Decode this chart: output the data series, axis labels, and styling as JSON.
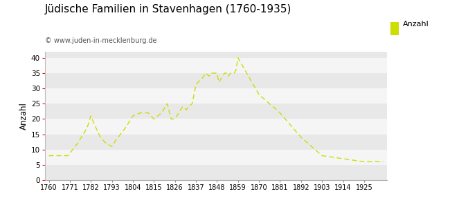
{
  "title": "Jüdische Familien in Stavenhagen (1760-1935)",
  "subtitle": "© www.juden-in-mecklenburg.de",
  "ylabel": "Anzahl",
  "legend_label": "Anzahl",
  "line_color": "#ccdd00",
  "background_color": "#ffffff",
  "plot_bg_color": "#e8e8e8",
  "strip_color": "#f5f5f5",
  "ylim": [
    0,
    42
  ],
  "yticks": [
    0,
    5,
    10,
    15,
    20,
    25,
    30,
    35,
    40
  ],
  "xticks": [
    1760,
    1771,
    1782,
    1793,
    1804,
    1815,
    1826,
    1837,
    1848,
    1859,
    1870,
    1881,
    1892,
    1903,
    1914,
    1925
  ],
  "years": [
    1760,
    1762,
    1765,
    1770,
    1775,
    1780,
    1782,
    1784,
    1787,
    1790,
    1793,
    1795,
    1800,
    1804,
    1808,
    1812,
    1815,
    1817,
    1819,
    1821,
    1822,
    1824,
    1826,
    1828,
    1830,
    1832,
    1833,
    1835,
    1837,
    1838,
    1840,
    1842,
    1844,
    1845,
    1848,
    1849,
    1850,
    1851,
    1852,
    1853,
    1854,
    1855,
    1856,
    1857,
    1858,
    1859,
    1870,
    1881,
    1892,
    1903,
    1914,
    1925,
    1935
  ],
  "values": [
    8,
    8,
    8,
    8,
    12,
    17,
    21,
    18,
    14,
    12,
    11,
    13,
    17,
    21,
    22,
    22,
    20,
    21,
    22,
    24,
    25,
    20,
    20,
    22,
    24,
    23,
    24,
    25,
    31,
    32,
    33,
    35,
    34,
    35,
    35,
    32,
    33,
    34,
    35,
    35,
    34,
    35,
    35,
    35,
    36,
    40,
    28,
    22,
    14,
    8,
    7,
    6,
    6
  ]
}
